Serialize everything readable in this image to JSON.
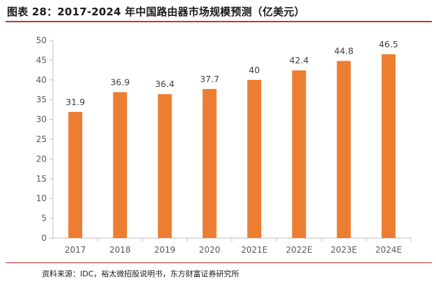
{
  "header": {
    "title": "图表 28：2017-2024 年中国路由器市场规模预测（亿美元）"
  },
  "footer": {
    "source": "资料来源：IDC，裕太微招股说明书，东方财富证券研究所"
  },
  "colors": {
    "bar": "#ed7d31",
    "accent_rule": "#c9302c",
    "axis": "#bfbfbf"
  },
  "chart_data": {
    "type": "bar",
    "title": "2017-2024 年中国路由器市场规模预测（亿美元）",
    "xlabel": "",
    "ylabel": "",
    "categories": [
      "2017",
      "2018",
      "2019",
      "2020",
      "2021E",
      "2022E",
      "2023E",
      "2024E"
    ],
    "values": [
      31.9,
      36.9,
      36.4,
      37.7,
      40,
      42.4,
      44.8,
      46.5
    ],
    "value_labels": [
      "31.9",
      "36.9",
      "36.4",
      "37.7",
      "40",
      "42.4",
      "44.8",
      "46.5"
    ],
    "ylim": [
      0,
      50
    ],
    "yticks": [
      0,
      5,
      10,
      15,
      20,
      25,
      30,
      35,
      40,
      45,
      50
    ],
    "grid": false,
    "legend": "none"
  }
}
